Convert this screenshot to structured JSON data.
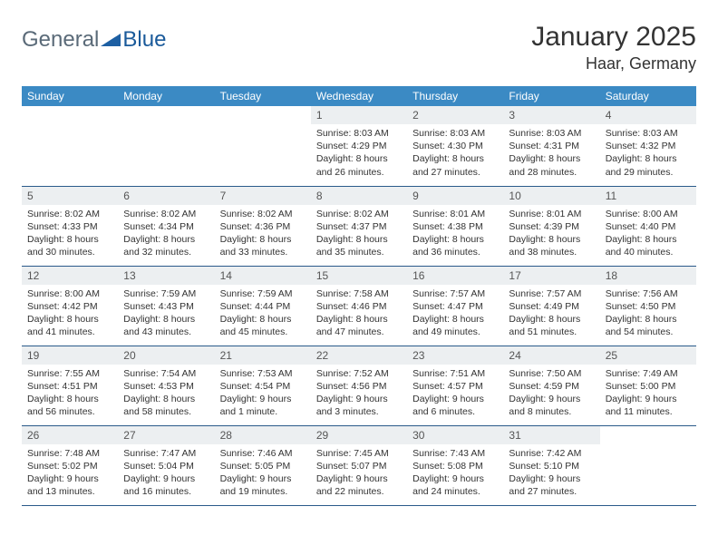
{
  "logo": {
    "text1": "General",
    "text2": "Blue"
  },
  "header": {
    "month_title": "January 2025",
    "location": "Haar, Germany"
  },
  "colors": {
    "header_bg": "#3b8ac4",
    "header_text": "#ffffff",
    "daynum_bg": "#eceff1",
    "row_border": "#2a5a8a",
    "logo_general": "#5a6a78",
    "logo_blue": "#1a5a9a",
    "logo_triangle": "#1d5fa3"
  },
  "day_headers": [
    "Sunday",
    "Monday",
    "Tuesday",
    "Wednesday",
    "Thursday",
    "Friday",
    "Saturday"
  ],
  "weeks": [
    [
      {
        "num": "",
        "sunrise": "",
        "sunset": "",
        "daylight": ""
      },
      {
        "num": "",
        "sunrise": "",
        "sunset": "",
        "daylight": ""
      },
      {
        "num": "",
        "sunrise": "",
        "sunset": "",
        "daylight": ""
      },
      {
        "num": "1",
        "sunrise": "Sunrise: 8:03 AM",
        "sunset": "Sunset: 4:29 PM",
        "daylight": "Daylight: 8 hours and 26 minutes."
      },
      {
        "num": "2",
        "sunrise": "Sunrise: 8:03 AM",
        "sunset": "Sunset: 4:30 PM",
        "daylight": "Daylight: 8 hours and 27 minutes."
      },
      {
        "num": "3",
        "sunrise": "Sunrise: 8:03 AM",
        "sunset": "Sunset: 4:31 PM",
        "daylight": "Daylight: 8 hours and 28 minutes."
      },
      {
        "num": "4",
        "sunrise": "Sunrise: 8:03 AM",
        "sunset": "Sunset: 4:32 PM",
        "daylight": "Daylight: 8 hours and 29 minutes."
      }
    ],
    [
      {
        "num": "5",
        "sunrise": "Sunrise: 8:02 AM",
        "sunset": "Sunset: 4:33 PM",
        "daylight": "Daylight: 8 hours and 30 minutes."
      },
      {
        "num": "6",
        "sunrise": "Sunrise: 8:02 AM",
        "sunset": "Sunset: 4:34 PM",
        "daylight": "Daylight: 8 hours and 32 minutes."
      },
      {
        "num": "7",
        "sunrise": "Sunrise: 8:02 AM",
        "sunset": "Sunset: 4:36 PM",
        "daylight": "Daylight: 8 hours and 33 minutes."
      },
      {
        "num": "8",
        "sunrise": "Sunrise: 8:02 AM",
        "sunset": "Sunset: 4:37 PM",
        "daylight": "Daylight: 8 hours and 35 minutes."
      },
      {
        "num": "9",
        "sunrise": "Sunrise: 8:01 AM",
        "sunset": "Sunset: 4:38 PM",
        "daylight": "Daylight: 8 hours and 36 minutes."
      },
      {
        "num": "10",
        "sunrise": "Sunrise: 8:01 AM",
        "sunset": "Sunset: 4:39 PM",
        "daylight": "Daylight: 8 hours and 38 minutes."
      },
      {
        "num": "11",
        "sunrise": "Sunrise: 8:00 AM",
        "sunset": "Sunset: 4:40 PM",
        "daylight": "Daylight: 8 hours and 40 minutes."
      }
    ],
    [
      {
        "num": "12",
        "sunrise": "Sunrise: 8:00 AM",
        "sunset": "Sunset: 4:42 PM",
        "daylight": "Daylight: 8 hours and 41 minutes."
      },
      {
        "num": "13",
        "sunrise": "Sunrise: 7:59 AM",
        "sunset": "Sunset: 4:43 PM",
        "daylight": "Daylight: 8 hours and 43 minutes."
      },
      {
        "num": "14",
        "sunrise": "Sunrise: 7:59 AM",
        "sunset": "Sunset: 4:44 PM",
        "daylight": "Daylight: 8 hours and 45 minutes."
      },
      {
        "num": "15",
        "sunrise": "Sunrise: 7:58 AM",
        "sunset": "Sunset: 4:46 PM",
        "daylight": "Daylight: 8 hours and 47 minutes."
      },
      {
        "num": "16",
        "sunrise": "Sunrise: 7:57 AM",
        "sunset": "Sunset: 4:47 PM",
        "daylight": "Daylight: 8 hours and 49 minutes."
      },
      {
        "num": "17",
        "sunrise": "Sunrise: 7:57 AM",
        "sunset": "Sunset: 4:49 PM",
        "daylight": "Daylight: 8 hours and 51 minutes."
      },
      {
        "num": "18",
        "sunrise": "Sunrise: 7:56 AM",
        "sunset": "Sunset: 4:50 PM",
        "daylight": "Daylight: 8 hours and 54 minutes."
      }
    ],
    [
      {
        "num": "19",
        "sunrise": "Sunrise: 7:55 AM",
        "sunset": "Sunset: 4:51 PM",
        "daylight": "Daylight: 8 hours and 56 minutes."
      },
      {
        "num": "20",
        "sunrise": "Sunrise: 7:54 AM",
        "sunset": "Sunset: 4:53 PM",
        "daylight": "Daylight: 8 hours and 58 minutes."
      },
      {
        "num": "21",
        "sunrise": "Sunrise: 7:53 AM",
        "sunset": "Sunset: 4:54 PM",
        "daylight": "Daylight: 9 hours and 1 minute."
      },
      {
        "num": "22",
        "sunrise": "Sunrise: 7:52 AM",
        "sunset": "Sunset: 4:56 PM",
        "daylight": "Daylight: 9 hours and 3 minutes."
      },
      {
        "num": "23",
        "sunrise": "Sunrise: 7:51 AM",
        "sunset": "Sunset: 4:57 PM",
        "daylight": "Daylight: 9 hours and 6 minutes."
      },
      {
        "num": "24",
        "sunrise": "Sunrise: 7:50 AM",
        "sunset": "Sunset: 4:59 PM",
        "daylight": "Daylight: 9 hours and 8 minutes."
      },
      {
        "num": "25",
        "sunrise": "Sunrise: 7:49 AM",
        "sunset": "Sunset: 5:00 PM",
        "daylight": "Daylight: 9 hours and 11 minutes."
      }
    ],
    [
      {
        "num": "26",
        "sunrise": "Sunrise: 7:48 AM",
        "sunset": "Sunset: 5:02 PM",
        "daylight": "Daylight: 9 hours and 13 minutes."
      },
      {
        "num": "27",
        "sunrise": "Sunrise: 7:47 AM",
        "sunset": "Sunset: 5:04 PM",
        "daylight": "Daylight: 9 hours and 16 minutes."
      },
      {
        "num": "28",
        "sunrise": "Sunrise: 7:46 AM",
        "sunset": "Sunset: 5:05 PM",
        "daylight": "Daylight: 9 hours and 19 minutes."
      },
      {
        "num": "29",
        "sunrise": "Sunrise: 7:45 AM",
        "sunset": "Sunset: 5:07 PM",
        "daylight": "Daylight: 9 hours and 22 minutes."
      },
      {
        "num": "30",
        "sunrise": "Sunrise: 7:43 AM",
        "sunset": "Sunset: 5:08 PM",
        "daylight": "Daylight: 9 hours and 24 minutes."
      },
      {
        "num": "31",
        "sunrise": "Sunrise: 7:42 AM",
        "sunset": "Sunset: 5:10 PM",
        "daylight": "Daylight: 9 hours and 27 minutes."
      },
      {
        "num": "",
        "sunrise": "",
        "sunset": "",
        "daylight": ""
      }
    ]
  ]
}
